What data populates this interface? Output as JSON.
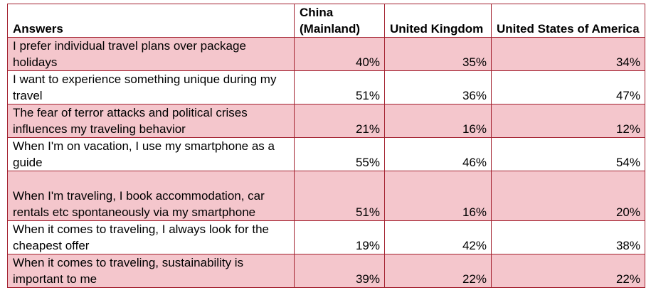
{
  "table": {
    "header": [
      "Answers",
      "China (Mainland)",
      "United Kingdom",
      "United States of America"
    ],
    "rows": [
      [
        "I prefer individual travel plans over package holidays",
        "40%",
        "35%",
        "34%"
      ],
      [
        "I want to experience something unique during my travel",
        "51%",
        "36%",
        "47%"
      ],
      [
        "The fear of terror attacks and political crises influences my traveling behavior",
        "21%",
        "16%",
        "12%"
      ],
      [
        "When I'm on vacation, I use my smartphone as a guide",
        "55%",
        "46%",
        "54%"
      ],
      [
        "When I'm traveling, I book accommodation, car rentals etc spontaneously via my smartphone",
        "51%",
        "16%",
        "20%"
      ],
      [
        "When it comes to traveling, I always look for the cheapest offer",
        "19%",
        "42%",
        "38%"
      ],
      [
        "When it comes to traveling, sustainability is important to me",
        "39%",
        "22%",
        "22%"
      ]
    ]
  }
}
